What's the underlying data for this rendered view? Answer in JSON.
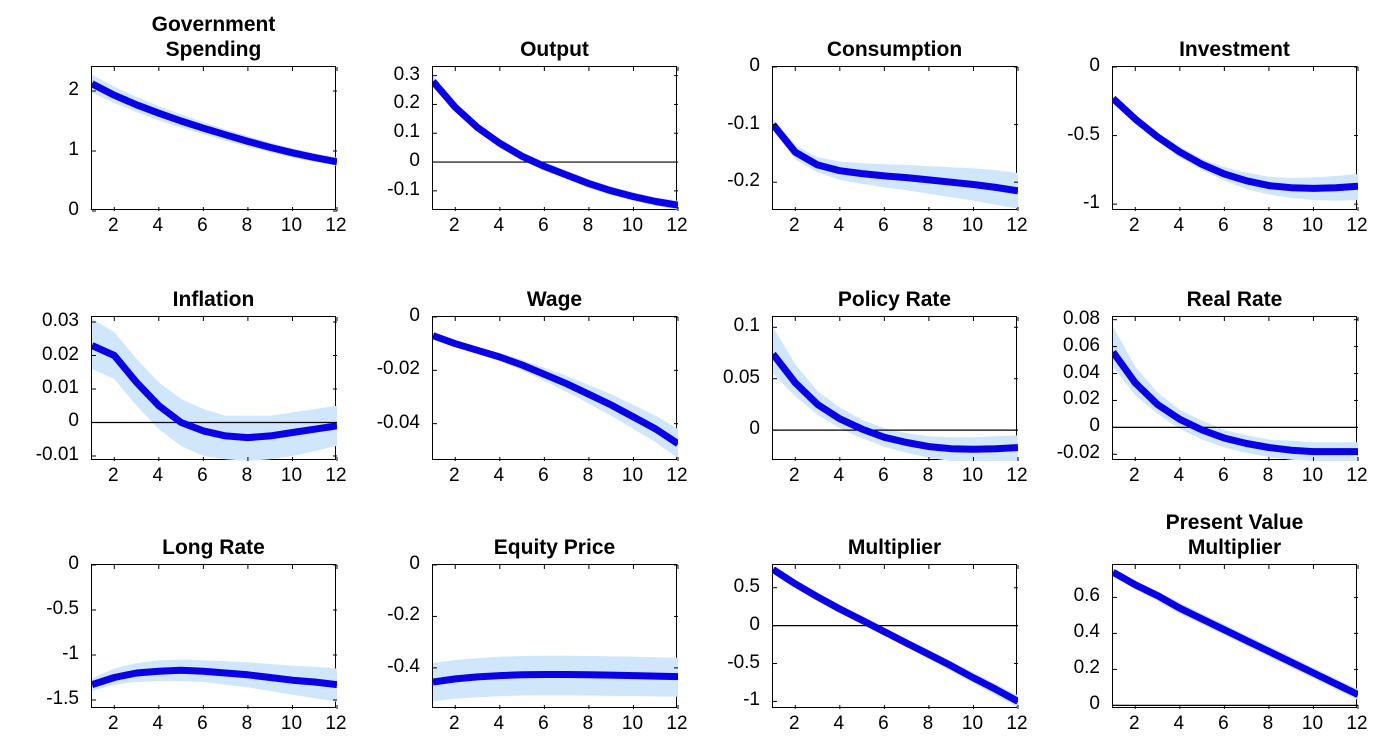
{
  "chart_data": [
    {
      "type": "line",
      "title_lines": [
        "Government",
        "Spending"
      ],
      "x": [
        1,
        2,
        3,
        4,
        5,
        6,
        7,
        8,
        9,
        10,
        11,
        12
      ],
      "values": [
        2.12,
        1.93,
        1.77,
        1.63,
        1.5,
        1.38,
        1.27,
        1.16,
        1.06,
        0.97,
        0.89,
        0.82
      ],
      "band_lower": [
        1.97,
        1.8,
        1.65,
        1.51,
        1.39,
        1.28,
        1.17,
        1.07,
        0.98,
        0.89,
        0.82,
        0.75
      ],
      "band_upper": [
        2.27,
        2.07,
        1.9,
        1.75,
        1.61,
        1.48,
        1.36,
        1.25,
        1.14,
        1.05,
        0.96,
        0.89
      ],
      "xlim": [
        1,
        12
      ],
      "ylim": [
        0,
        2.4
      ],
      "yticks": [
        0,
        1,
        2
      ],
      "ytick_labels": [
        "0",
        "1",
        "2"
      ],
      "xticks": [
        2,
        4,
        6,
        8,
        10,
        12
      ],
      "xtick_labels": [
        "2",
        "4",
        "6",
        "8",
        "10",
        "12"
      ],
      "zero_line": false
    },
    {
      "type": "line",
      "title_lines": [
        "Output"
      ],
      "x": [
        1,
        2,
        3,
        4,
        5,
        6,
        7,
        8,
        9,
        10,
        11,
        12
      ],
      "values": [
        0.28,
        0.19,
        0.12,
        0.065,
        0.02,
        -0.015,
        -0.045,
        -0.075,
        -0.1,
        -0.12,
        -0.137,
        -0.15
      ],
      "band_lower": [
        0.26,
        0.175,
        0.105,
        0.05,
        0.005,
        -0.03,
        -0.06,
        -0.09,
        -0.115,
        -0.135,
        -0.152,
        -0.166
      ],
      "band_upper": [
        0.3,
        0.205,
        0.135,
        0.08,
        0.035,
        0.0,
        -0.03,
        -0.06,
        -0.085,
        -0.105,
        -0.122,
        -0.135
      ],
      "xlim": [
        1,
        12
      ],
      "ylim": [
        -0.17,
        0.33
      ],
      "yticks": [
        -0.1,
        0,
        0.1,
        0.2,
        0.3
      ],
      "ytick_labels": [
        "-0.1",
        "0",
        "0.1",
        "0.2",
        "0.3"
      ],
      "xticks": [
        2,
        4,
        6,
        8,
        10,
        12
      ],
      "xtick_labels": [
        "2",
        "4",
        "6",
        "8",
        "10",
        "12"
      ],
      "zero_line": true
    },
    {
      "type": "line",
      "title_lines": [
        "Consumption"
      ],
      "x": [
        1,
        2,
        3,
        4,
        5,
        6,
        7,
        8,
        9,
        10,
        11,
        12
      ],
      "values": [
        -0.1,
        -0.148,
        -0.17,
        -0.18,
        -0.185,
        -0.189,
        -0.192,
        -0.196,
        -0.2,
        -0.204,
        -0.209,
        -0.215
      ],
      "band_lower": [
        -0.11,
        -0.16,
        -0.183,
        -0.196,
        -0.203,
        -0.209,
        -0.214,
        -0.22,
        -0.226,
        -0.232,
        -0.239,
        -0.246
      ],
      "band_upper": [
        -0.09,
        -0.136,
        -0.157,
        -0.164,
        -0.167,
        -0.169,
        -0.17,
        -0.172,
        -0.174,
        -0.176,
        -0.179,
        -0.184
      ],
      "xlim": [
        1,
        12
      ],
      "ylim": [
        -0.25,
        0
      ],
      "yticks": [
        -0.2,
        -0.1,
        0
      ],
      "ytick_labels": [
        "-0.2",
        "-0.1",
        "0"
      ],
      "xticks": [
        2,
        4,
        6,
        8,
        10,
        12
      ],
      "xtick_labels": [
        "2",
        "4",
        "6",
        "8",
        "10",
        "12"
      ],
      "zero_line": false
    },
    {
      "type": "line",
      "title_lines": [
        "Investment"
      ],
      "x": [
        1,
        2,
        3,
        4,
        5,
        6,
        7,
        8,
        9,
        10,
        11,
        12
      ],
      "values": [
        -0.23,
        -0.38,
        -0.51,
        -0.62,
        -0.71,
        -0.78,
        -0.83,
        -0.865,
        -0.88,
        -0.885,
        -0.88,
        -0.87
      ],
      "band_lower": [
        -0.24,
        -0.4,
        -0.54,
        -0.66,
        -0.75,
        -0.83,
        -0.89,
        -0.93,
        -0.955,
        -0.97,
        -0.975,
        -0.97
      ],
      "band_upper": [
        -0.22,
        -0.36,
        -0.48,
        -0.58,
        -0.67,
        -0.73,
        -0.77,
        -0.8,
        -0.81,
        -0.805,
        -0.795,
        -0.78
      ],
      "xlim": [
        1,
        12
      ],
      "ylim": [
        -1.05,
        0
      ],
      "yticks": [
        -1,
        -0.5,
        0
      ],
      "ytick_labels": [
        "-1",
        "-0.5",
        "0"
      ],
      "xticks": [
        2,
        4,
        6,
        8,
        10,
        12
      ],
      "xtick_labels": [
        "2",
        "4",
        "6",
        "8",
        "10",
        "12"
      ],
      "zero_line": false
    },
    {
      "type": "line",
      "title_lines": [
        "Inflation"
      ],
      "x": [
        1,
        2,
        3,
        4,
        5,
        6,
        7,
        8,
        9,
        10,
        11,
        12
      ],
      "values": [
        0.023,
        0.02,
        0.012,
        0.005,
        0.0,
        -0.0025,
        -0.004,
        -0.0045,
        -0.004,
        -0.003,
        -0.002,
        -0.001
      ],
      "band_lower": [
        0.016,
        0.013,
        0.005,
        -0.002,
        -0.007,
        -0.01,
        -0.011,
        -0.0115,
        -0.011,
        -0.01,
        -0.0085,
        -0.007
      ],
      "band_upper": [
        0.031,
        0.027,
        0.019,
        0.012,
        0.007,
        0.004,
        0.002,
        0.002,
        0.002,
        0.003,
        0.004,
        0.005
      ],
      "xlim": [
        1,
        12
      ],
      "ylim": [
        -0.0115,
        0.0315
      ],
      "yticks": [
        -0.01,
        0,
        0.01,
        0.02,
        0.03
      ],
      "ytick_labels": [
        "-0.01",
        "0",
        "0.01",
        "0.02",
        "0.03"
      ],
      "xticks": [
        2,
        4,
        6,
        8,
        10,
        12
      ],
      "xtick_labels": [
        "2",
        "4",
        "6",
        "8",
        "10",
        "12"
      ],
      "zero_line": true
    },
    {
      "type": "line",
      "title_lines": [
        "Wage"
      ],
      "x": [
        1,
        2,
        3,
        4,
        5,
        6,
        7,
        8,
        9,
        10,
        11,
        12
      ],
      "values": [
        -0.007,
        -0.01,
        -0.0125,
        -0.015,
        -0.018,
        -0.0215,
        -0.025,
        -0.029,
        -0.033,
        -0.0375,
        -0.042,
        -0.0475
      ],
      "band_lower": [
        -0.008,
        -0.011,
        -0.0135,
        -0.0165,
        -0.02,
        -0.024,
        -0.028,
        -0.0325,
        -0.037,
        -0.042,
        -0.047,
        -0.053
      ],
      "band_upper": [
        -0.006,
        -0.009,
        -0.0115,
        -0.0135,
        -0.016,
        -0.019,
        -0.022,
        -0.0255,
        -0.029,
        -0.033,
        -0.037,
        -0.042
      ],
      "xlim": [
        1,
        12
      ],
      "ylim": [
        -0.054,
        0
      ],
      "yticks": [
        -0.04,
        -0.02,
        0
      ],
      "ytick_labels": [
        "-0.04",
        "-0.02",
        "0"
      ],
      "xticks": [
        2,
        4,
        6,
        8,
        10,
        12
      ],
      "xtick_labels": [
        "2",
        "4",
        "6",
        "8",
        "10",
        "12"
      ],
      "zero_line": false
    },
    {
      "type": "line",
      "title_lines": [
        "Policy Rate"
      ],
      "x": [
        1,
        2,
        3,
        4,
        5,
        6,
        7,
        8,
        9,
        10,
        11,
        12
      ],
      "values": [
        0.074,
        0.046,
        0.025,
        0.011,
        0.001,
        -0.007,
        -0.012,
        -0.016,
        -0.018,
        -0.0185,
        -0.018,
        -0.017
      ],
      "band_lower": [
        0.055,
        0.033,
        0.015,
        0.002,
        -0.008,
        -0.016,
        -0.022,
        -0.027,
        -0.03,
        -0.031,
        -0.031,
        -0.03
      ],
      "band_upper": [
        0.1,
        0.064,
        0.038,
        0.022,
        0.01,
        0.002,
        -0.003,
        -0.006,
        -0.007,
        -0.007,
        -0.006,
        -0.005
      ],
      "xlim": [
        1,
        12
      ],
      "ylim": [
        -0.03,
        0.11
      ],
      "yticks": [
        0,
        0.05,
        0.1
      ],
      "ytick_labels": [
        "0",
        "0.05",
        "0.1"
      ],
      "xticks": [
        2,
        4,
        6,
        8,
        10,
        12
      ],
      "xtick_labels": [
        "2",
        "4",
        "6",
        "8",
        "10",
        "12"
      ],
      "zero_line": true
    },
    {
      "type": "line",
      "title_lines": [
        "Real Rate"
      ],
      "x": [
        1,
        2,
        3,
        4,
        5,
        6,
        7,
        8,
        9,
        10,
        11,
        12
      ],
      "values": [
        0.056,
        0.033,
        0.017,
        0.006,
        -0.002,
        -0.008,
        -0.012,
        -0.015,
        -0.017,
        -0.018,
        -0.018,
        -0.018
      ],
      "band_lower": [
        0.045,
        0.024,
        0.01,
        -0.001,
        -0.009,
        -0.015,
        -0.019,
        -0.022,
        -0.024,
        -0.025,
        -0.025,
        -0.025
      ],
      "band_upper": [
        0.075,
        0.045,
        0.026,
        0.013,
        0.005,
        -0.002,
        -0.006,
        -0.009,
        -0.01,
        -0.011,
        -0.011,
        -0.011
      ],
      "xlim": [
        1,
        12
      ],
      "ylim": [
        -0.025,
        0.082
      ],
      "yticks": [
        -0.02,
        0,
        0.02,
        0.04,
        0.06,
        0.08
      ],
      "ytick_labels": [
        "-0.02",
        "0",
        "0.02",
        "0.04",
        "0.06",
        "0.08"
      ],
      "xticks": [
        2,
        4,
        6,
        8,
        10,
        12
      ],
      "xtick_labels": [
        "2",
        "4",
        "6",
        "8",
        "10",
        "12"
      ],
      "zero_line": true
    },
    {
      "type": "line",
      "title_lines": [
        "Long Rate"
      ],
      "x": [
        1,
        2,
        3,
        4,
        5,
        6,
        7,
        8,
        9,
        10,
        11,
        12
      ],
      "values": [
        -1.33,
        -1.25,
        -1.2,
        -1.18,
        -1.17,
        -1.18,
        -1.2,
        -1.22,
        -1.25,
        -1.28,
        -1.3,
        -1.33
      ],
      "band_lower": [
        -1.4,
        -1.33,
        -1.3,
        -1.29,
        -1.29,
        -1.3,
        -1.33,
        -1.36,
        -1.4,
        -1.44,
        -1.48,
        -1.52
      ],
      "band_upper": [
        -1.26,
        -1.15,
        -1.09,
        -1.06,
        -1.05,
        -1.06,
        -1.07,
        -1.08,
        -1.1,
        -1.12,
        -1.13,
        -1.15
      ],
      "xlim": [
        1,
        12
      ],
      "ylim": [
        -1.6,
        0
      ],
      "yticks": [
        -1.5,
        -1,
        -0.5,
        0
      ],
      "ytick_labels": [
        "-1.5",
        "-1",
        "-0.5",
        "0"
      ],
      "xticks": [
        2,
        4,
        6,
        8,
        10,
        12
      ],
      "xtick_labels": [
        "2",
        "4",
        "6",
        "8",
        "10",
        "12"
      ],
      "zero_line": false
    },
    {
      "type": "line",
      "title_lines": [
        "Equity Price"
      ],
      "x": [
        1,
        2,
        3,
        4,
        5,
        6,
        7,
        8,
        9,
        10,
        11,
        12
      ],
      "values": [
        -0.455,
        -0.443,
        -0.435,
        -0.43,
        -0.427,
        -0.426,
        -0.426,
        -0.427,
        -0.428,
        -0.43,
        -0.432,
        -0.434
      ],
      "band_lower": [
        -0.53,
        -0.52,
        -0.515,
        -0.51,
        -0.508,
        -0.507,
        -0.507,
        -0.508,
        -0.509,
        -0.51,
        -0.511,
        -0.512
      ],
      "band_upper": [
        -0.38,
        -0.37,
        -0.362,
        -0.357,
        -0.354,
        -0.353,
        -0.353,
        -0.354,
        -0.355,
        -0.357,
        -0.359,
        -0.361
      ],
      "xlim": [
        1,
        12
      ],
      "ylim": [
        -0.56,
        0
      ],
      "yticks": [
        -0.4,
        -0.2,
        0
      ],
      "ytick_labels": [
        "-0.4",
        "-0.2",
        "0"
      ],
      "xticks": [
        2,
        4,
        6,
        8,
        10,
        12
      ],
      "xtick_labels": [
        "2",
        "4",
        "6",
        "8",
        "10",
        "12"
      ],
      "zero_line": false
    },
    {
      "type": "line",
      "title_lines": [
        "Multiplier"
      ],
      "x": [
        1,
        2,
        3,
        4,
        5,
        6,
        7,
        8,
        9,
        10,
        11,
        12
      ],
      "values": [
        0.74,
        0.55,
        0.38,
        0.22,
        0.07,
        -0.08,
        -0.23,
        -0.38,
        -0.53,
        -0.69,
        -0.84,
        -1.0
      ],
      "band_lower": [
        0.7,
        0.5,
        0.33,
        0.17,
        0.02,
        -0.13,
        -0.28,
        -0.44,
        -0.6,
        -0.76,
        -0.92,
        -1.08
      ],
      "band_upper": [
        0.78,
        0.6,
        0.43,
        0.27,
        0.12,
        -0.03,
        -0.18,
        -0.32,
        -0.47,
        -0.62,
        -0.77,
        -0.92
      ],
      "xlim": [
        1,
        12
      ],
      "ylim": [
        -1.1,
        0.8
      ],
      "yticks": [
        -1,
        -0.5,
        0,
        0.5
      ],
      "ytick_labels": [
        "-1",
        "-0.5",
        "0",
        "0.5"
      ],
      "xticks": [
        2,
        4,
        6,
        8,
        10,
        12
      ],
      "xtick_labels": [
        "2",
        "4",
        "6",
        "8",
        "10",
        "12"
      ],
      "zero_line": true
    },
    {
      "type": "line",
      "title_lines": [
        "Present Value",
        "Multiplier"
      ],
      "x": [
        1,
        2,
        3,
        4,
        5,
        6,
        7,
        8,
        9,
        10,
        11,
        12
      ],
      "values": [
        0.74,
        0.67,
        0.61,
        0.54,
        0.48,
        0.42,
        0.36,
        0.3,
        0.24,
        0.18,
        0.12,
        0.06
      ],
      "band_lower": [
        0.72,
        0.645,
        0.58,
        0.51,
        0.45,
        0.39,
        0.33,
        0.27,
        0.21,
        0.15,
        0.09,
        0.03
      ],
      "band_upper": [
        0.76,
        0.69,
        0.635,
        0.57,
        0.51,
        0.45,
        0.39,
        0.33,
        0.27,
        0.21,
        0.15,
        0.09
      ],
      "xlim": [
        1,
        12
      ],
      "ylim": [
        -0.02,
        0.78
      ],
      "yticks": [
        0,
        0.2,
        0.4,
        0.6
      ],
      "ytick_labels": [
        "0",
        "0.2",
        "0.4",
        "0.6"
      ],
      "xticks": [
        2,
        4,
        6,
        8,
        10,
        12
      ],
      "xtick_labels": [
        "2",
        "4",
        "6",
        "8",
        "10",
        "12"
      ],
      "zero_line": true
    }
  ],
  "colors": {
    "line": "#0a00e6",
    "band": "#cfe6fb",
    "zero_line": "#000000"
  }
}
